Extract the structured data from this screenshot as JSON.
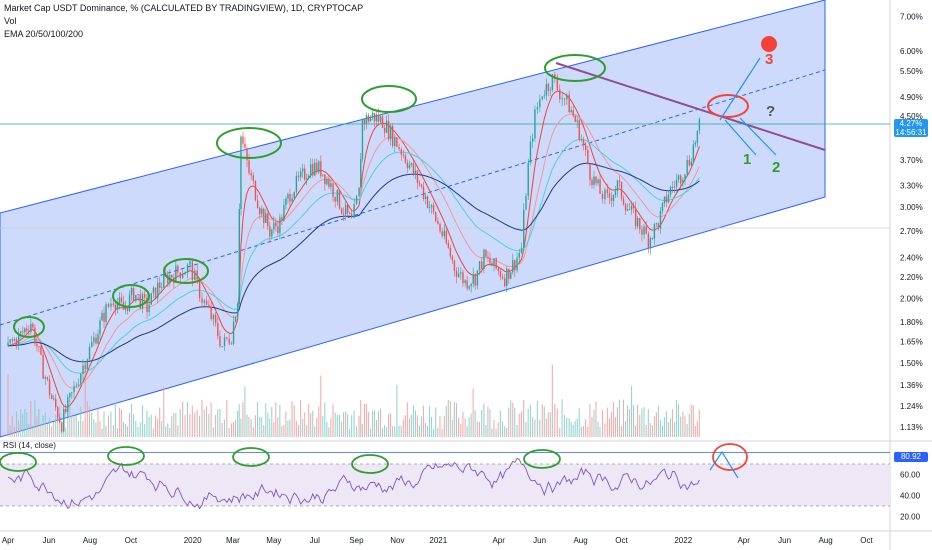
{
  "header": {
    "title": "Market Cap USDT Dominance, % (CALCULATED BY TRADINGVIEW), 1D, CRYPTOCAP",
    "vol": "Vol",
    "ema": "EMA 20/50/100/200"
  },
  "price_tag": {
    "value": "4.27%",
    "time": "14:56:31",
    "color": "#2196f3"
  },
  "rsi_tag": {
    "value": "80.92",
    "color": "#2962ff"
  },
  "chart_data": [
    {
      "type": "line",
      "title": "Market Cap USDT Dominance, % (CALCULATED BY TRADINGVIEW), 1D, CRYPTOCAP",
      "scale": "log",
      "y_ticks": [
        "7.00%",
        "6.00%",
        "5.50%",
        "4.90%",
        "4.50%",
        "3.70%",
        "3.30%",
        "3.00%",
        "2.70%",
        "2.40%",
        "2.20%",
        "2.00%",
        "1.80%",
        "1.65%",
        "1.50%",
        "1.36%",
        "1.24%",
        "1.13%"
      ],
      "ylim": [
        1.08,
        7.4
      ],
      "x_ticks": [
        "Apr",
        "Jun",
        "Aug",
        "Oct",
        "2020",
        "Mar",
        "May",
        "Jul",
        "Sep",
        "Nov",
        "2021",
        "Apr",
        "Jun",
        "Aug",
        "Oct",
        "2022",
        "Apr",
        "Jun",
        "Aug",
        "Oct"
      ],
      "price_series": [
        [
          "2019-04-01",
          1.62
        ],
        [
          "2019-04-20",
          1.7
        ],
        [
          "2019-05-05",
          1.8
        ],
        [
          "2019-05-20",
          1.5
        ],
        [
          "2019-06-05",
          1.28
        ],
        [
          "2019-06-20",
          1.15
        ],
        [
          "2019-07-05",
          1.3
        ],
        [
          "2019-07-25",
          1.52
        ],
        [
          "2019-08-10",
          1.7
        ],
        [
          "2019-08-25",
          1.9
        ],
        [
          "2019-09-05",
          2.0
        ],
        [
          "2019-09-20",
          1.9
        ],
        [
          "2019-10-05",
          2.05
        ],
        [
          "2019-10-25",
          1.92
        ],
        [
          "2019-11-10",
          2.1
        ],
        [
          "2019-11-25",
          2.2
        ],
        [
          "2019-12-10",
          2.25
        ],
        [
          "2019-12-28",
          2.3
        ],
        [
          "2020-01-15",
          2.0
        ],
        [
          "2020-02-01",
          1.8
        ],
        [
          "2020-02-14",
          1.62
        ],
        [
          "2020-02-28",
          1.7
        ],
        [
          "2020-03-08",
          2.0
        ],
        [
          "2020-03-13",
          4.1
        ],
        [
          "2020-03-25",
          3.5
        ],
        [
          "2020-04-10",
          3.0
        ],
        [
          "2020-04-25",
          2.7
        ],
        [
          "2020-05-10",
          2.8
        ],
        [
          "2020-05-25",
          3.2
        ],
        [
          "2020-06-10",
          3.4
        ],
        [
          "2020-06-25",
          3.6
        ],
        [
          "2020-07-10",
          3.55
        ],
        [
          "2020-07-25",
          3.3
        ],
        [
          "2020-08-10",
          3.0
        ],
        [
          "2020-08-25",
          2.8
        ],
        [
          "2020-09-05",
          3.2
        ],
        [
          "2020-09-10",
          4.4
        ],
        [
          "2020-09-25",
          4.5
        ],
        [
          "2020-10-10",
          4.4
        ],
        [
          "2020-10-25",
          4.1
        ],
        [
          "2020-11-10",
          3.8
        ],
        [
          "2020-11-25",
          3.5
        ],
        [
          "2020-12-10",
          3.2
        ],
        [
          "2020-12-25",
          2.9
        ],
        [
          "2021-01-10",
          2.6
        ],
        [
          "2021-01-25",
          2.3
        ],
        [
          "2021-02-10",
          2.15
        ],
        [
          "2021-02-25",
          2.2
        ],
        [
          "2021-03-10",
          2.4
        ],
        [
          "2021-03-25",
          2.3
        ],
        [
          "2021-04-10",
          2.2
        ],
        [
          "2021-04-25",
          2.35
        ],
        [
          "2021-05-05",
          2.5
        ],
        [
          "2021-05-15",
          3.6
        ],
        [
          "2021-05-25",
          4.5
        ],
        [
          "2021-06-05",
          5.0
        ],
        [
          "2021-06-20",
          5.3
        ],
        [
          "2021-07-01",
          5.0
        ],
        [
          "2021-07-15",
          4.7
        ],
        [
          "2021-07-30",
          4.2
        ],
        [
          "2021-08-15",
          3.5
        ],
        [
          "2021-08-30",
          3.2
        ],
        [
          "2021-09-10",
          3.1
        ],
        [
          "2021-09-25",
          3.3
        ],
        [
          "2021-10-10",
          3.0
        ],
        [
          "2021-10-25",
          2.8
        ],
        [
          "2021-11-10",
          2.6
        ],
        [
          "2021-11-25",
          2.8
        ],
        [
          "2021-12-10",
          3.2
        ],
        [
          "2021-12-25",
          3.4
        ],
        [
          "2022-01-10",
          3.7
        ],
        [
          "2022-01-25",
          4.27
        ]
      ],
      "volume_label": "Vol",
      "ema_label": "EMA 20/50/100/200",
      "annotations": [
        "1",
        "2",
        "3",
        "?"
      ]
    },
    {
      "type": "line",
      "title": "RSI (14, close)",
      "y_ticks": [
        60.0,
        40.0,
        20.0
      ],
      "ylim": [
        10,
        90
      ],
      "bands": [
        30,
        70
      ],
      "level_line": 80.92,
      "last_value": 80.92
    }
  ]
}
